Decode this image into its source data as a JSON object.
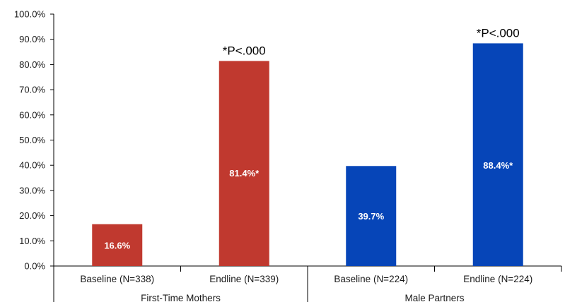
{
  "chart_data": {
    "type": "bar",
    "title": "",
    "xlabel": "",
    "ylabel": "",
    "ylim": [
      0,
      100
    ],
    "yticks": [
      "0.0%",
      "10.0%",
      "20.0%",
      "30.0%",
      "40.0%",
      "50.0%",
      "60.0%",
      "70.0%",
      "80.0%",
      "90.0%",
      "100.0%"
    ],
    "grid": false,
    "legend": "none",
    "groups": [
      {
        "label": "First-Time Mothers",
        "color": "#c0392f"
      },
      {
        "label": "Male Partners",
        "color": "#0645b8"
      }
    ],
    "bars": [
      {
        "category": "Baseline (N=338)",
        "group": 0,
        "value": 16.6,
        "label": "16.6%",
        "annotation": ""
      },
      {
        "category": "Endline (N=339)",
        "group": 0,
        "value": 81.4,
        "label": "81.4%*",
        "annotation": "*P<.000"
      },
      {
        "category": "Baseline (N=224)",
        "group": 1,
        "value": 39.7,
        "label": "39.7%",
        "annotation": ""
      },
      {
        "category": "Endline (N=224)",
        "group": 1,
        "value": 88.4,
        "label": "88.4%*",
        "annotation": "*P<.000"
      }
    ]
  }
}
